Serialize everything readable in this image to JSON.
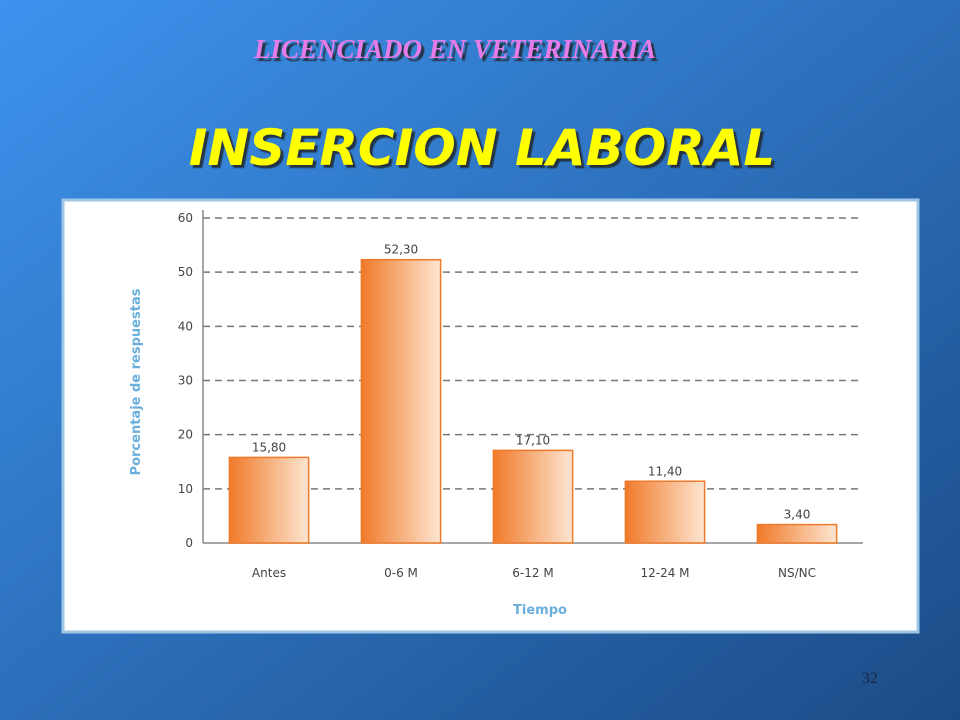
{
  "slide": {
    "header": "LICENCIADO EN VETERINARIA",
    "title": "INSERCION LABORAL",
    "page_number": 32
  },
  "chart_data": {
    "type": "bar",
    "categories": [
      "Antes",
      "0-6 M",
      "6-12 M",
      "12-24 M",
      "NS/NC"
    ],
    "values": [
      15.8,
      52.3,
      17.1,
      11.4,
      3.4
    ],
    "value_labels": [
      "15,80",
      "52,30",
      "17,10",
      "11,40",
      "3,40"
    ],
    "color": "#f07a2a",
    "x_label": "Tiempo",
    "y_label": "Porcentaje de respuestas",
    "ylim": [
      0,
      60
    ],
    "yticks": [
      0,
      10,
      20,
      30,
      40,
      50,
      60
    ],
    "grid": true
  }
}
